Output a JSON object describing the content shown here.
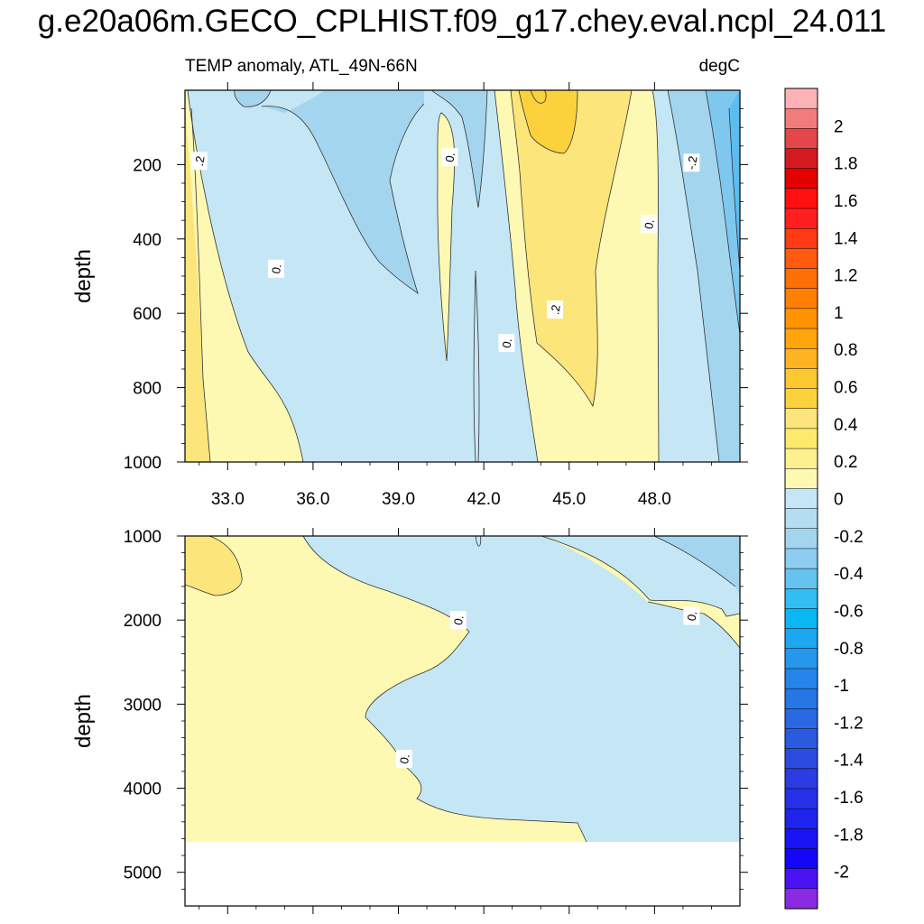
{
  "title": "g.e20a06m.GECO_CPLHIST.f09_g17.chey.eval.ncpl_24.011",
  "colors": {
    "pos_0_0.2": "#fdf9b3",
    "pos_0.2_0.4": "#fce57a",
    "pos_0.4_0.6": "#fbd23c",
    "neg_0_-0.2": "#c5e6f5",
    "neg_-0.2_-0.4": "#a3d6ee",
    "neg_-0.4_-0.6": "#7ec8ef",
    "blank": "#ffffff"
  },
  "chart_data": [
    {
      "type": "contour",
      "panel": "upper",
      "title": "TEMP anomaly, ATL_49N-66N",
      "units": "degC",
      "xlabel": "",
      "ylabel": "depth",
      "xlim": [
        31.5,
        51.0
      ],
      "ylim": [
        1000,
        0
      ],
      "xticks": [
        "33.0",
        "36.0",
        "39.0",
        "42.0",
        "45.0",
        "48.0"
      ],
      "xtick_values": [
        33,
        36,
        39,
        42,
        45,
        48
      ],
      "yticks": [
        "200",
        "400",
        "600",
        "800",
        "1000"
      ],
      "ytick_values": [
        200,
        400,
        600,
        800,
        1000
      ],
      "contour_labels": [
        {
          "text": ".2",
          "x": 32.0,
          "y": 190
        },
        {
          "text": "0.",
          "x": 34.7,
          "y": 480
        },
        {
          "text": "0.",
          "x": 40.8,
          "y": 180
        },
        {
          "text": "0.",
          "x": 42.8,
          "y": 680
        },
        {
          "text": ".2",
          "x": 44.5,
          "y": 590
        },
        {
          "text": "0.",
          "x": 47.8,
          "y": 360
        },
        {
          "text": "-.2",
          "x": 49.3,
          "y": 195
        }
      ]
    },
    {
      "type": "contour",
      "panel": "lower",
      "title": "",
      "units": "",
      "xlabel": "",
      "ylabel": "depth",
      "xlim": [
        31.5,
        51.0
      ],
      "ylim": [
        1000,
        5400
      ],
      "xticks": [],
      "yticks": [
        "1000",
        "2000",
        "3000",
        "4000",
        "5000"
      ],
      "ytick_values": [
        1000,
        2000,
        3000,
        4000,
        5000
      ],
      "missing_below_depth": 4650,
      "contour_labels": [
        {
          "text": "0.",
          "x": 41.1,
          "y": 2000
        },
        {
          "text": "0.",
          "x": 49.3,
          "y": 1950
        },
        {
          "text": "0.",
          "x": 39.2,
          "y": 3650
        }
      ]
    },
    {
      "type": "colorbar",
      "levels": [
        "2",
        "1.8",
        "1.6",
        "1.4",
        "1.2",
        "1",
        "0.8",
        "0.6",
        "0.4",
        "0.2",
        "0",
        "-0.2",
        "-0.4",
        "-0.6",
        "-0.8",
        "-1",
        "-1.2",
        "-1.4",
        "-1.6",
        "-1.8",
        "-2"
      ],
      "colors": [
        "#fdb3b6",
        "#f27c7c",
        "#e3474a",
        "#d41c20",
        "#e40000",
        "#ff0f0f",
        "#ff1f1f",
        "#ff3a14",
        "#ff5a10",
        "#ff6f08",
        "#ff7f00",
        "#ff9400",
        "#ffa60d",
        "#feb422",
        "#fcc830",
        "#fbd23c",
        "#fce57a",
        "#fcea6d",
        "#fdf08f",
        "#fdf9b3",
        "#c5e6f5",
        "#b3def2",
        "#a3d6ee",
        "#8ccdf0",
        "#66c3f0",
        "#33bdf2",
        "#0ab6f4",
        "#1ca7f0",
        "#2797ee",
        "#2585ea",
        "#2677e6",
        "#2869e2",
        "#2a5ae0",
        "#2c4bdf",
        "#2a3ce2",
        "#2530e8",
        "#1f23ee",
        "#1a14f4",
        "#1406f8",
        "#4b12f4",
        "#8a2be2"
      ]
    }
  ]
}
